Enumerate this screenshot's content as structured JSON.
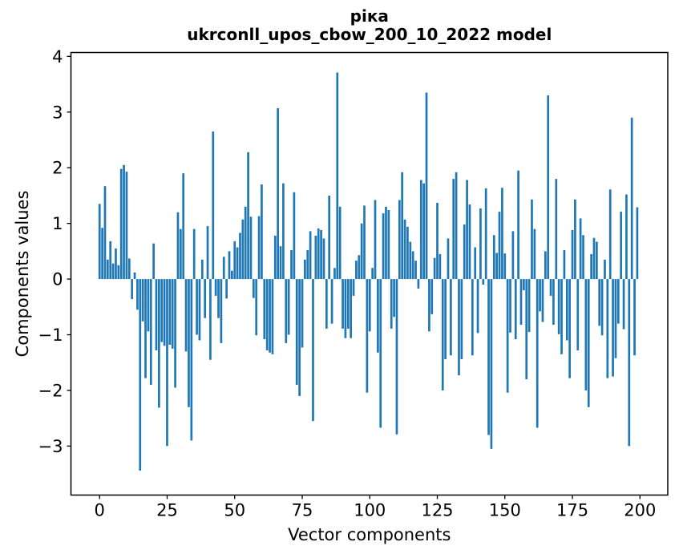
{
  "chart_data": {
    "type": "bar",
    "title": "ріка",
    "subtitle": "ukrconll_upos_cbow_200_10_2022 model",
    "xlabel": "Vector components",
    "ylabel": "Components values",
    "legend": null,
    "grid": false,
    "bar_color": "#1f77b4",
    "n_components": 200,
    "x_ticks": [
      0,
      25,
      50,
      75,
      100,
      125,
      150,
      175,
      200
    ],
    "y_ticks": [
      -3,
      -2,
      -1,
      0,
      1,
      2,
      3,
      4
    ],
    "xlim": [
      -10.6,
      210.3
    ],
    "ylim": [
      -3.88,
      4.07
    ],
    "values": [
      1.35,
      0.92,
      1.67,
      0.35,
      0.68,
      0.28,
      0.55,
      0.25,
      1.98,
      2.05,
      1.93,
      0.37,
      -0.36,
      0.12,
      -0.55,
      -3.44,
      -0.76,
      -1.78,
      -0.94,
      -1.9,
      0.64,
      -1.28,
      -2.31,
      -1.13,
      -1.2,
      -3.0,
      -1.18,
      -1.25,
      -1.95,
      1.2,
      0.9,
      1.9,
      -1.3,
      -2.3,
      -2.9,
      0.9,
      -1.0,
      -1.1,
      0.35,
      -0.7,
      0.95,
      -1.45,
      2.65,
      -0.3,
      -0.7,
      -1.15,
      0.4,
      -0.35,
      0.5,
      0.15,
      0.68,
      0.57,
      0.83,
      1.07,
      1.3,
      2.28,
      1.12,
      -0.34,
      -1.01,
      1.13,
      1.7,
      -1.08,
      -1.28,
      -1.32,
      -1.35,
      0.78,
      3.07,
      0.59,
      1.72,
      -1.15,
      -1.0,
      0.52,
      1.56,
      -1.9,
      -2.1,
      -1.23,
      0.35,
      0.52,
      0.86,
      -2.55,
      0.78,
      0.91,
      0.88,
      0.73,
      -0.89,
      1.5,
      -0.8,
      0.2,
      3.71,
      1.3,
      -0.89,
      -1.06,
      -0.89,
      -1.06,
      -0.3,
      0.33,
      0.43,
      1.0,
      1.32,
      -2.04,
      -0.94,
      0.2,
      1.42,
      -1.32,
      -2.67,
      1.18,
      1.3,
      1.24,
      -0.89,
      -0.68,
      -2.79,
      1.42,
      1.92,
      1.07,
      0.94,
      0.67,
      0.5,
      0.33,
      -0.17,
      1.78,
      1.72,
      3.35,
      -0.94,
      -0.63,
      0.38,
      1.37,
      0.45,
      -2.0,
      -1.44,
      0.73,
      -1.37,
      1.8,
      1.92,
      -1.73,
      -1.44,
      0.98,
      1.78,
      1.34,
      -1.37,
      0.57,
      -0.97,
      1.27,
      -0.1,
      1.63,
      -2.8,
      -3.05,
      0.79,
      0.47,
      1.21,
      1.64,
      0.46,
      -2.04,
      -0.96,
      0.86,
      -1.08,
      1.95,
      -0.82,
      -0.2,
      -1.8,
      -0.95,
      1.43,
      0.9,
      -2.67,
      -0.58,
      -0.77,
      0.5,
      3.3,
      -0.3,
      -0.82,
      1.8,
      -0.99,
      -1.35,
      0.52,
      -1.1,
      -1.78,
      0.88,
      1.43,
      -1.28,
      1.09,
      0.79,
      -2.0,
      -2.3,
      0.45,
      0.74,
      0.67,
      -0.84,
      -1.01,
      0.35,
      -1.78,
      1.61,
      -1.75,
      -1.42,
      -0.8,
      1.21,
      -0.9,
      1.52,
      -3.0,
      2.9,
      -1.37,
      1.29
    ]
  }
}
